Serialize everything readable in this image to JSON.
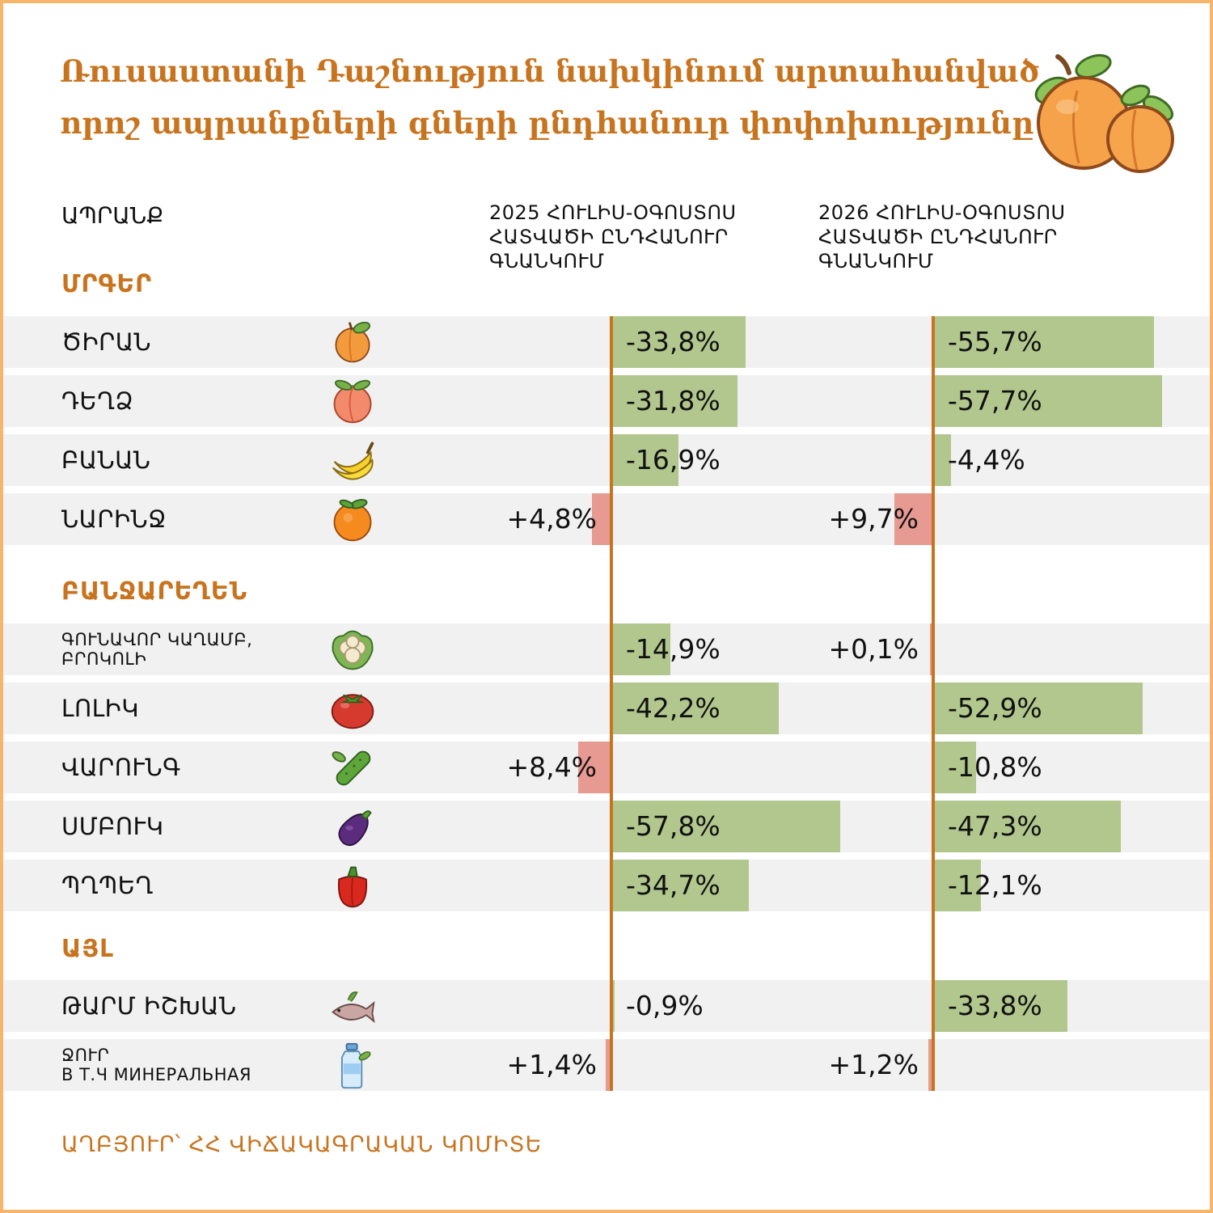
{
  "title_lines": [
    "Ռուսաստանի Դաշնություն նախկինում արտահանված",
    "որոշ ապրանքների գների ընդհանուր փոփոխությունը"
  ],
  "icons": {
    "header": "apricot-icon"
  },
  "colors": {
    "accent": "#c8741f",
    "negative_bar": "#b2c78d",
    "positive_bar": "#e69a92",
    "row_bg": "#f1f1f1"
  },
  "chart_data": {
    "type": "bar",
    "orientation": "horizontal",
    "title": "Ռուսաստանի Դաշնություն նախկինում արտահանված որոշ ապրանքների գների ընդհանուր փոփոխությունը",
    "product_header": "ԱՊՐԱՆՔ",
    "unit": "%",
    "series": [
      {
        "name_lines": [
          "2025 ՀՈՒԼԻՍ-ՕԳՈՍՏՈՍ",
          "ՀԱՏՎԱԾԻ ԸՆԴՀԱՆՈՒՐ",
          "ԳՆԱՆԿՈՒՄ"
        ]
      },
      {
        "name_lines": [
          "2026 ՀՈՒԼԻՍ-ՕԳՈՍՏՈՍ",
          "ՀԱՏՎԱԾԻ ԸՆԴՀԱՆՈՒՐ",
          "ԳՆԱՆԿՈՒՄ"
        ]
      }
    ],
    "groups": [
      {
        "label": "ՄՐԳԵՐ",
        "items": [
          {
            "name": [
              "ԾԻՐԱՆ"
            ],
            "icon": "apricot-icon",
            "values": [
              -33.8,
              -55.7
            ],
            "labels": [
              "-33,8%",
              "-55,7%"
            ]
          },
          {
            "name": [
              "ԴԵՂՁ"
            ],
            "icon": "peach-icon",
            "values": [
              -31.8,
              -57.7
            ],
            "labels": [
              "-31,8%",
              "-57,7%"
            ]
          },
          {
            "name": [
              "ԲԱՆԱՆ"
            ],
            "icon": "banana-icon",
            "values": [
              -16.9,
              -4.4
            ],
            "labels": [
              "-16,9%",
              "-4,4%"
            ]
          },
          {
            "name": [
              "ՆԱՐԻՆՋ"
            ],
            "icon": "orange-icon",
            "values": [
              4.8,
              9.7
            ],
            "labels": [
              "+4,8%",
              "+9,7%"
            ]
          }
        ]
      },
      {
        "label": "ԲԱՆՋԱՐԵՂԵՆ",
        "items": [
          {
            "name": [
              "ԳՈՒՆԱՎՈՐ ԿԱՂԱՄԲ,",
              "ԲՐՈԿՈԼԻ"
            ],
            "icon": "cauliflower-icon",
            "values": [
              -14.9,
              0.1
            ],
            "labels": [
              "-14,9%",
              "+0,1%"
            ]
          },
          {
            "name": [
              "ԼՈԼԻԿ"
            ],
            "icon": "tomato-icon",
            "values": [
              -42.2,
              -52.9
            ],
            "labels": [
              "-42,2%",
              "-52,9%"
            ]
          },
          {
            "name": [
              "ՎԱՐՈՒՆԳ"
            ],
            "icon": "cucumber-icon",
            "values": [
              8.4,
              -10.8
            ],
            "labels": [
              "+8,4%",
              "-10,8%"
            ]
          },
          {
            "name": [
              "ՍՄԲՈՒԿ"
            ],
            "icon": "eggplant-icon",
            "values": [
              -57.8,
              -47.3
            ],
            "labels": [
              "-57,8%",
              "-47,3%"
            ]
          },
          {
            "name": [
              "ՊՂՊԵՂ"
            ],
            "icon": "pepper-icon",
            "values": [
              -34.7,
              -12.1
            ],
            "labels": [
              "-34,7%",
              "-12,1%"
            ]
          }
        ]
      },
      {
        "label": "ԱՅԼ",
        "items": [
          {
            "name": [
              "ԹԱՐՄ ԻՇԽԱՆ"
            ],
            "icon": "fish-icon",
            "values": [
              -0.9,
              -33.8
            ],
            "labels": [
              "-0,9%",
              "-33,8%"
            ]
          },
          {
            "name": [
              "ՋՈՒՐ",
              "В Т.Ч МИНЕРАЛЬНАЯ"
            ],
            "icon": "water-bottle-icon",
            "values": [
              1.4,
              1.2
            ],
            "labels": [
              "+1,4%",
              "+1,2%"
            ]
          }
        ]
      }
    ]
  },
  "source": "ԱՂԲՅՈՒՐ՝ ՀՀ ՎԻՃԱԿԱԳՐԱԿԱՆ ԿՈՄԻՏԵ"
}
